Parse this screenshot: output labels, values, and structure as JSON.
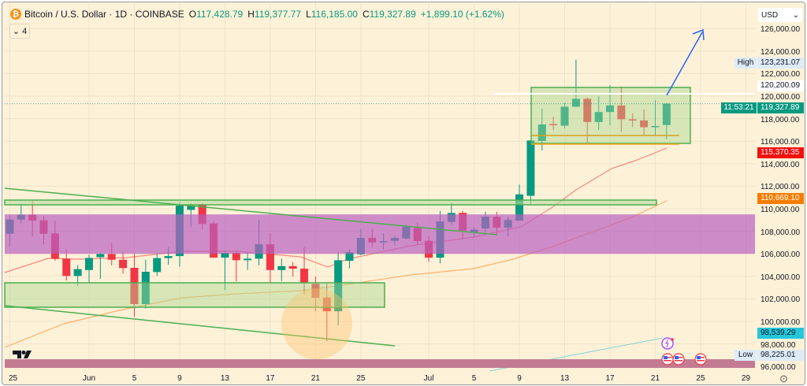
{
  "header": {
    "symbol": "Bitcoin / U.S. Dollar · 1D · COINBASE",
    "o_key": "O",
    "o": "117,428.79",
    "h_key": "H",
    "h": "119,377.77",
    "l_key": "L",
    "l": "116,185.00",
    "c_key": "C",
    "c": "119,327.89",
    "change": "+1,899.10 (+1.62%)",
    "btc_icon": "₿"
  },
  "legend_toggle": {
    "icon": "⌄",
    "count": "4"
  },
  "currency": {
    "selected": "USD",
    "icon": "⌄"
  },
  "price_ticks": [
    "126,000.00",
    "124,000.00",
    "122,000.00",
    "120,000.00",
    "118,000.00",
    "116,000.00",
    "114,000.00",
    "112,000.00",
    "110,000.00",
    "108,000.00",
    "106,000.00",
    "104,000.00",
    "102,000.00",
    "100,000.00",
    "98,000.00",
    "96,000.00"
  ],
  "price_labels": {
    "high_tag": "High",
    "high": "123,231.07",
    "level_white": "120,200.09",
    "last": "119,327.89",
    "countdown": "11:53:21",
    "ma_red": "115,370.35",
    "ma_orange": "110,669.10",
    "teal_line": "98,539.29",
    "low_tag": "Low",
    "low": "98,225.01"
  },
  "time_labels": [
    "25",
    "Jun",
    "5",
    "9",
    "13",
    "17",
    "21",
    "25",
    "Jul",
    "5",
    "9",
    "13",
    "17",
    "21",
    "25",
    "29"
  ],
  "colors": {
    "up": "#089981",
    "down": "#f23645",
    "background": "#fdf1d8",
    "zone_purple": "#b85fc0",
    "zone_green": "#4caf50",
    "ma_fast": "#f7776f",
    "ma_slow": "#ffa04d",
    "arrow": "#2962ff"
  },
  "chart_data": {
    "type": "candlestick",
    "symbol": "BTCUSD",
    "timeframe": "1D",
    "ylim": [
      96000,
      126000
    ],
    "grid": true,
    "candles": [
      {
        "date": "May 25",
        "o": 107783,
        "h": 109420,
        "l": 106664,
        "c": 109042
      },
      {
        "date": "May 26",
        "o": 109042,
        "h": 110399,
        "l": 108692,
        "c": 109462
      },
      {
        "date": "May 27",
        "o": 109462,
        "h": 110748,
        "l": 107552,
        "c": 108951
      },
      {
        "date": "May 28",
        "o": 108972,
        "h": 109350,
        "l": 106832,
        "c": 107783
      },
      {
        "date": "May 29",
        "o": 107811,
        "h": 108930,
        "l": 105384,
        "c": 105560
      },
      {
        "date": "May 30",
        "o": 105573,
        "h": 106413,
        "l": 103636,
        "c": 104035
      },
      {
        "date": "May 31",
        "o": 104035,
        "h": 104986,
        "l": 103168,
        "c": 104637
      },
      {
        "date": "Jun 1",
        "o": 104560,
        "h": 105910,
        "l": 103425,
        "c": 105632
      },
      {
        "date": "Jun 2",
        "o": 105700,
        "h": 106070,
        "l": 103775,
        "c": 105980
      },
      {
        "date": "Jun 3",
        "o": 105980,
        "h": 106960,
        "l": 104980,
        "c": 105470
      },
      {
        "date": "Jun 4",
        "o": 105475,
        "h": 106133,
        "l": 104243,
        "c": 104733
      },
      {
        "date": "Jun 5",
        "o": 104755,
        "h": 106014,
        "l": 100397,
        "c": 101538
      },
      {
        "date": "Jun 6",
        "o": 101538,
        "h": 105475,
        "l": 101140,
        "c": 104405
      },
      {
        "date": "Jun 7",
        "o": 104380,
        "h": 106014,
        "l": 104034,
        "c": 105620
      },
      {
        "date": "Jun 8",
        "o": 105620,
        "h": 106595,
        "l": 105035,
        "c": 105800
      },
      {
        "date": "Jun 9",
        "o": 105800,
        "h": 110630,
        "l": 104860,
        "c": 110280
      },
      {
        "date": "Jun 10",
        "o": 109900,
        "h": 110500,
        "l": 108420,
        "c": 110270
      },
      {
        "date": "Jun 11",
        "o": 110330,
        "h": 110510,
        "l": 108140,
        "c": 108650
      },
      {
        "date": "Jun 12",
        "o": 108690,
        "h": 108880,
        "l": 105660,
        "c": 105660
      },
      {
        "date": "Jun 13",
        "o": 105660,
        "h": 106270,
        "l": 102770,
        "c": 106080
      },
      {
        "date": "Jun 14",
        "o": 106080,
        "h": 106270,
        "l": 103540,
        "c": 105430
      },
      {
        "date": "Jun 15",
        "o": 105430,
        "h": 106130,
        "l": 104560,
        "c": 105570
      },
      {
        "date": "Jun 16",
        "o": 105570,
        "h": 109000,
        "l": 104980,
        "c": 106850
      },
      {
        "date": "Jun 17",
        "o": 106850,
        "h": 107830,
        "l": 103420,
        "c": 104560
      },
      {
        "date": "Jun 18",
        "o": 104560,
        "h": 105570,
        "l": 103590,
        "c": 104910
      },
      {
        "date": "Jun 19",
        "o": 104910,
        "h": 105260,
        "l": 103980,
        "c": 104680
      },
      {
        "date": "Jun 20",
        "o": 104680,
        "h": 106600,
        "l": 102400,
        "c": 103400
      },
      {
        "date": "Jun 21",
        "o": 103330,
        "h": 103980,
        "l": 100900,
        "c": 102100
      },
      {
        "date": "Jun 22",
        "o": 102120,
        "h": 103400,
        "l": 98225,
        "c": 100900
      },
      {
        "date": "Jun 23",
        "o": 100900,
        "h": 106130,
        "l": 99650,
        "c": 105430
      },
      {
        "date": "Jun 24",
        "o": 105380,
        "h": 106370,
        "l": 104710,
        "c": 106150
      },
      {
        "date": "Jun 25",
        "o": 105960,
        "h": 108230,
        "l": 105890,
        "c": 107410
      },
      {
        "date": "Jun 26",
        "o": 107410,
        "h": 108230,
        "l": 106570,
        "c": 107010
      },
      {
        "date": "Jun 27",
        "o": 107010,
        "h": 107830,
        "l": 106430,
        "c": 107130
      },
      {
        "date": "Jun 28",
        "o": 107150,
        "h": 107600,
        "l": 106800,
        "c": 107410
      },
      {
        "date": "Jun 29",
        "o": 107360,
        "h": 108580,
        "l": 107290,
        "c": 108410
      },
      {
        "date": "Jun 30",
        "o": 108300,
        "h": 108760,
        "l": 106780,
        "c": 107130
      },
      {
        "date": "Jul 1",
        "o": 107160,
        "h": 107550,
        "l": 105310,
        "c": 105660
      },
      {
        "date": "Jul 2",
        "o": 105660,
        "h": 109810,
        "l": 105150,
        "c": 108880
      },
      {
        "date": "Jul 3",
        "o": 108830,
        "h": 110560,
        "l": 108580,
        "c": 109630
      },
      {
        "date": "Jul 4",
        "o": 109630,
        "h": 109810,
        "l": 107260,
        "c": 108060
      },
      {
        "date": "Jul 5",
        "o": 107900,
        "h": 108370,
        "l": 107480,
        "c": 108140
      },
      {
        "date": "Jul 6",
        "o": 108250,
        "h": 109740,
        "l": 107880,
        "c": 109300
      },
      {
        "date": "Jul 7",
        "o": 109300,
        "h": 109740,
        "l": 107600,
        "c": 108320
      },
      {
        "date": "Jul 8",
        "o": 108320,
        "h": 109280,
        "l": 107550,
        "c": 109000
      },
      {
        "date": "Jul 9",
        "o": 108950,
        "h": 112150,
        "l": 108950,
        "c": 111280
      },
      {
        "date": "Jul 10",
        "o": 111150,
        "h": 116060,
        "l": 110440,
        "c": 116060
      },
      {
        "date": "Jul 11",
        "o": 116020,
        "h": 118900,
        "l": 115170,
        "c": 117480
      },
      {
        "date": "Jul 12",
        "o": 117520,
        "h": 118170,
        "l": 116960,
        "c": 117470
      },
      {
        "date": "Jul 13",
        "o": 117380,
        "h": 119400,
        "l": 117140,
        "c": 119060
      },
      {
        "date": "Jul 14",
        "o": 119060,
        "h": 123231,
        "l": 119020,
        "c": 119760
      },
      {
        "date": "Jul 15",
        "o": 119760,
        "h": 119870,
        "l": 115840,
        "c": 117700
      },
      {
        "date": "Jul 16",
        "o": 117700,
        "h": 119990,
        "l": 117000,
        "c": 118590
      },
      {
        "date": "Jul 17",
        "o": 118590,
        "h": 120970,
        "l": 117420,
        "c": 119170
      },
      {
        "date": "Jul 18",
        "o": 119170,
        "h": 120850,
        "l": 116840,
        "c": 117940
      },
      {
        "date": "Jul 19",
        "o": 117940,
        "h": 118470,
        "l": 117260,
        "c": 117840
      },
      {
        "date": "Jul 20",
        "o": 117840,
        "h": 118800,
        "l": 116500,
        "c": 117240
      },
      {
        "date": "Jul 21",
        "o": 117240,
        "h": 119640,
        "l": 116500,
        "c": 117350
      },
      {
        "date": "Jul 22",
        "o": 117429,
        "h": 119378,
        "l": 116185,
        "c": 119328
      }
    ],
    "zones": [
      {
        "kind": "rectangle",
        "color": "purple",
        "from": "May 25",
        "to": "Jul 29",
        "low": 106000,
        "high": 109500
      },
      {
        "kind": "rectangle",
        "color": "green",
        "from": "May 25",
        "to": "Jul 21",
        "low": 110300,
        "high": 110700
      },
      {
        "kind": "rectangle",
        "color": "green",
        "from": "May 25",
        "to": "Jun 27",
        "low": 101200,
        "high": 103200
      },
      {
        "kind": "rectangle",
        "color": "green",
        "from": "Jul 10",
        "to": "Jul 24",
        "low": 115800,
        "high": 120700
      }
    ]
  }
}
